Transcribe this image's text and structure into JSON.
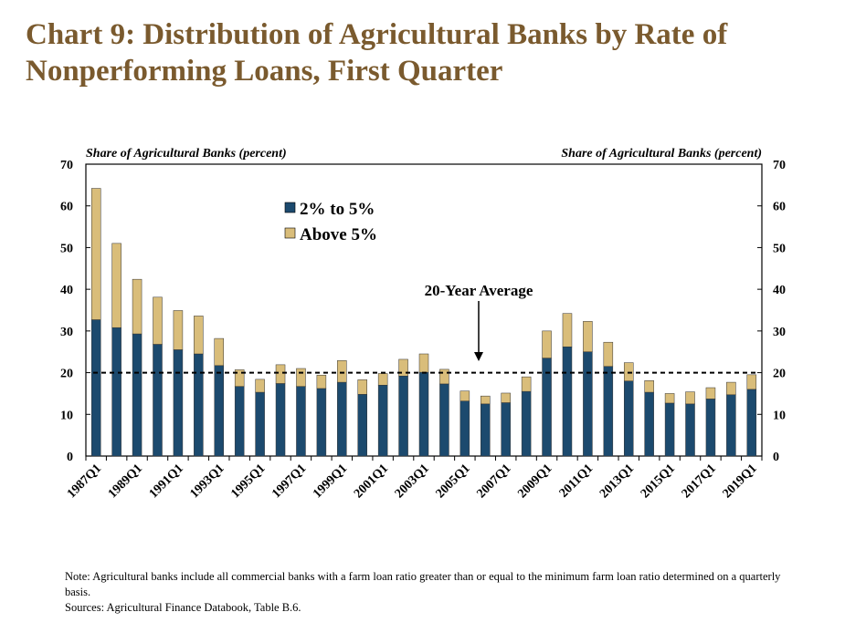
{
  "title": "Chart 9: Distribution of Agricultural Banks by Rate of Nonperforming Loans, First Quarter",
  "note": "Note: Agricultural banks include all commercial banks with a farm loan ratio greater than or equal to the minimum farm loan ratio determined on a quarterly basis.",
  "sources": "Sources: Agricultural Finance Databook, Table B.6.",
  "colors": {
    "series_2_to_5": "#1c4a6e",
    "series_above_5": "#d9bd7a",
    "title": "#7a5a2e"
  },
  "chart_data": {
    "type": "bar",
    "stacked": true,
    "yaxis_left_label": "Share of Agricultural Banks (percent)",
    "yaxis_right_label": "Share of Agricultural Banks (percent)",
    "ylim": [
      0,
      70
    ],
    "yticks": [
      0,
      10,
      20,
      30,
      40,
      50,
      60,
      70
    ],
    "legend_position": "top-left-inside",
    "categories": [
      "1987Q1",
      "1988Q1",
      "1989Q1",
      "1990Q1",
      "1991Q1",
      "1992Q1",
      "1993Q1",
      "1994Q1",
      "1995Q1",
      "1996Q1",
      "1997Q1",
      "1998Q1",
      "1999Q1",
      "2000Q1",
      "2001Q1",
      "2002Q1",
      "2003Q1",
      "2004Q1",
      "2005Q1",
      "2006Q1",
      "2007Q1",
      "2008Q1",
      "2009Q1",
      "2010Q1",
      "2011Q1",
      "2012Q1",
      "2013Q1",
      "2014Q1",
      "2015Q1",
      "2016Q1",
      "2017Q1",
      "2018Q1",
      "2019Q1"
    ],
    "xtick_labels": [
      "1987Q1",
      "",
      "1989Q1",
      "",
      "1991Q1",
      "",
      "1993Q1",
      "",
      "1995Q1",
      "",
      "1997Q1",
      "",
      "1999Q1",
      "",
      "2001Q1",
      "",
      "2003Q1",
      "",
      "2005Q1",
      "",
      "2007Q1",
      "",
      "2009Q1",
      "",
      "2011Q1",
      "",
      "2013Q1",
      "",
      "2015Q1",
      "",
      "2017Q1",
      "",
      "2019Q1"
    ],
    "series": [
      {
        "name": "2% to 5%",
        "values": [
          32.7,
          30.8,
          29.3,
          26.8,
          25.5,
          24.5,
          21.7,
          16.7,
          15.3,
          17.4,
          16.7,
          16.2,
          17.7,
          14.8,
          17.0,
          19.2,
          20.1,
          17.3,
          13.2,
          12.5,
          12.8,
          15.5,
          23.5,
          26.2,
          25.0,
          21.5,
          18.0,
          15.3,
          12.7,
          12.5,
          13.7,
          14.7,
          16.0
        ]
      },
      {
        "name": "Above 5%",
        "values": [
          31.5,
          20.2,
          13.1,
          11.3,
          9.4,
          9.1,
          6.5,
          4.0,
          3.1,
          4.5,
          4.3,
          3.2,
          5.2,
          3.5,
          2.8,
          4.0,
          4.4,
          3.5,
          2.4,
          1.9,
          2.3,
          3.5,
          6.5,
          8.0,
          7.3,
          5.8,
          4.4,
          2.8,
          2.3,
          2.9,
          2.7,
          3.0,
          3.5
        ]
      }
    ],
    "reference_line": {
      "value": 20.0,
      "style": "dashed",
      "label": "20-Year Average"
    }
  }
}
